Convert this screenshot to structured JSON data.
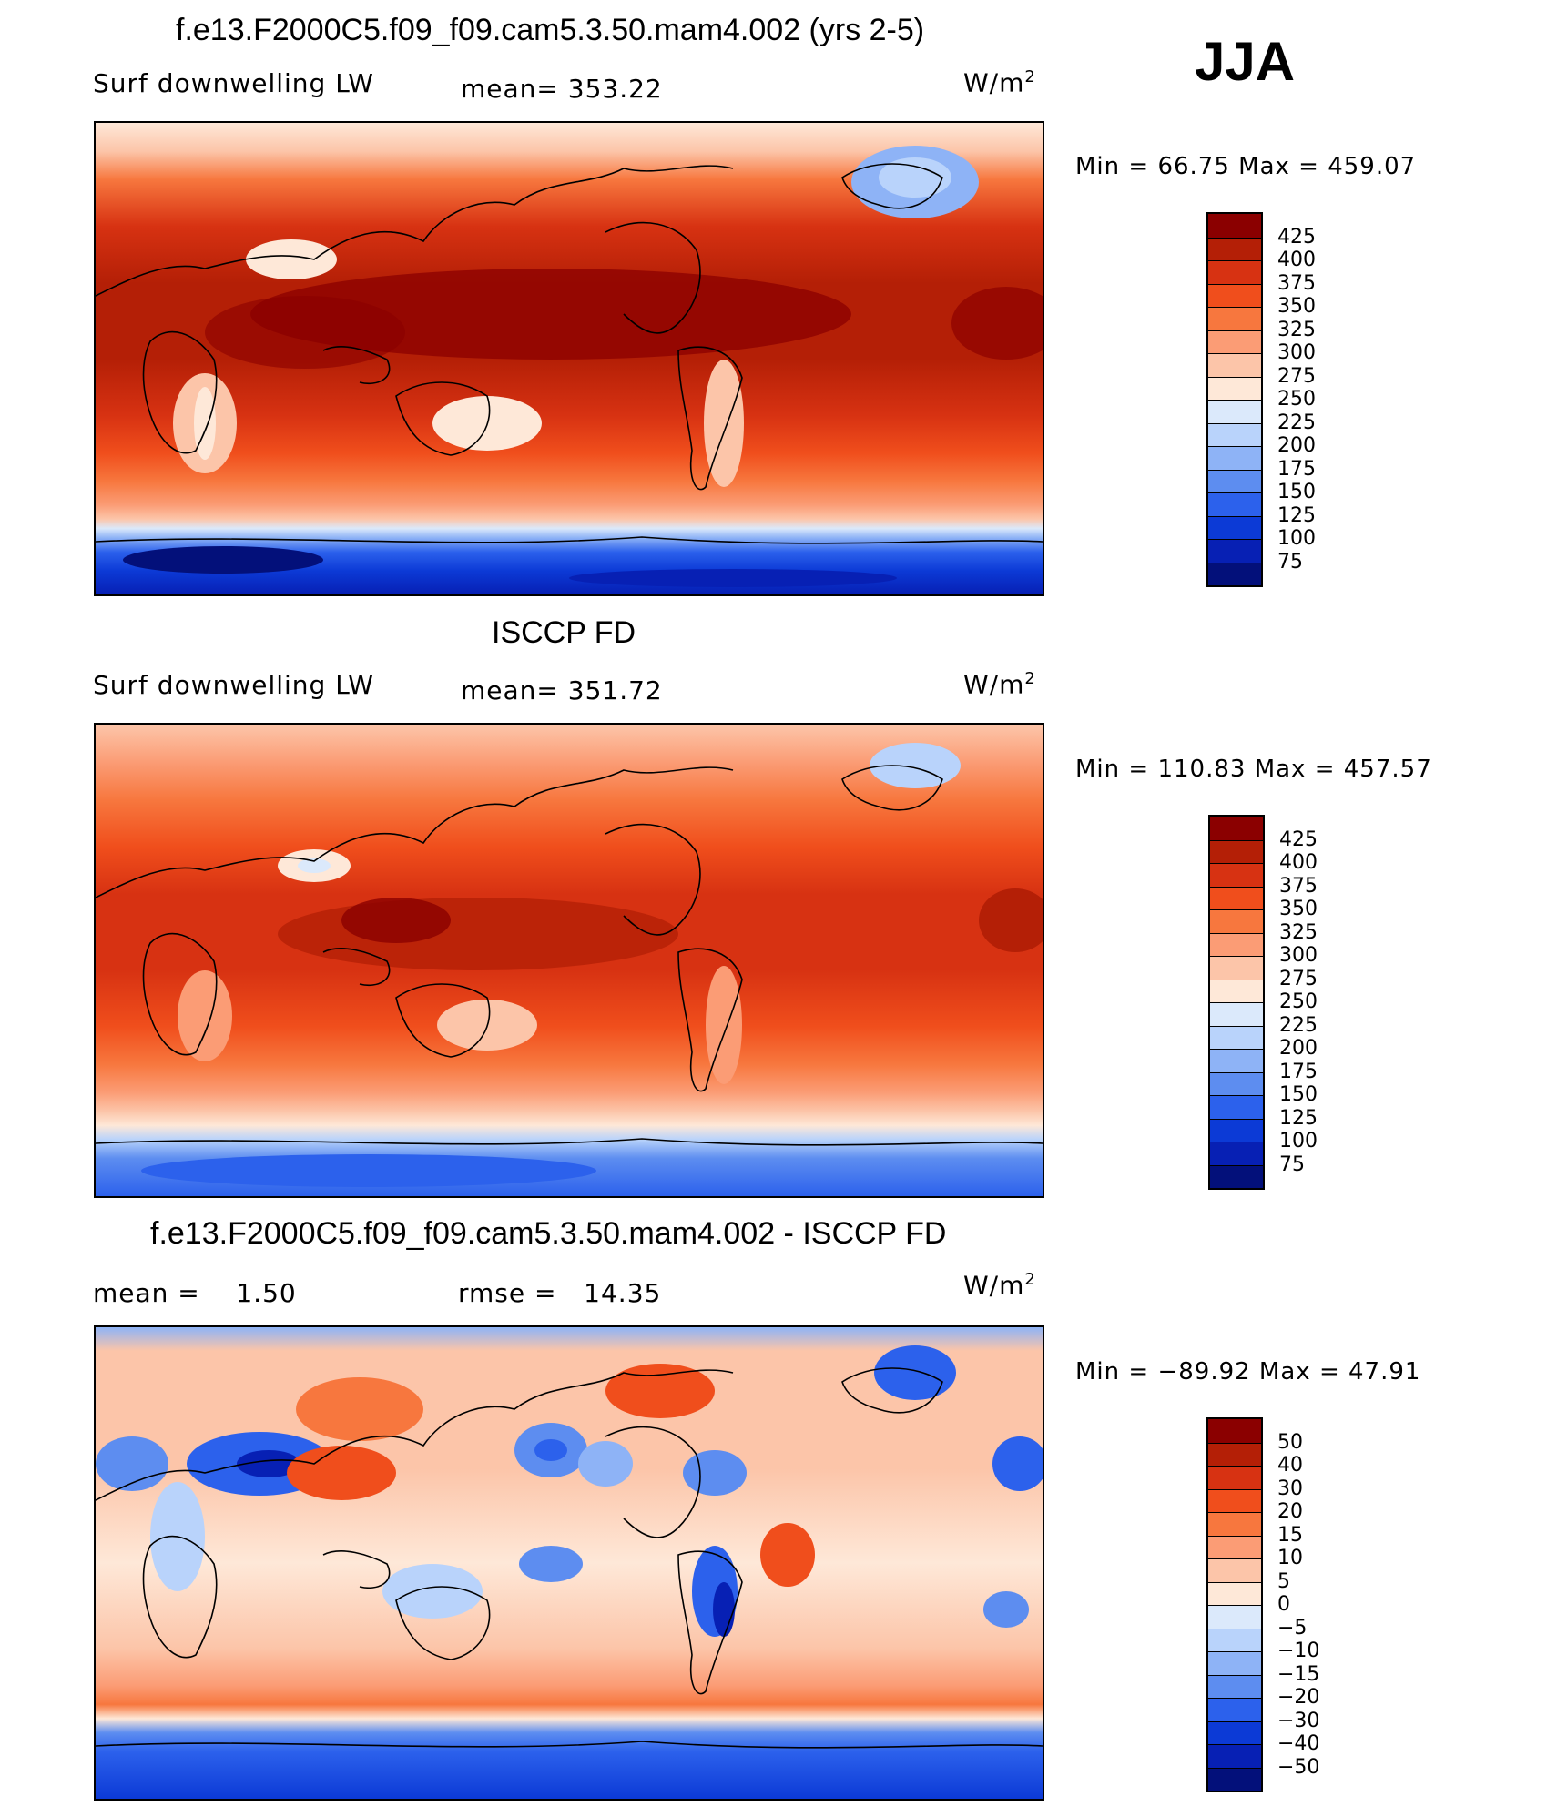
{
  "season": "JJA",
  "panels": [
    {
      "title": "f.e13.F2000C5.f09_f09.cam5.3.50.mam4.002 (yrs 2-5)",
      "left_label": "Surf downwelling LW",
      "center_label": "mean= 353.22",
      "units": "W/m",
      "units_sup": "2",
      "minmax": "Min =   66.75 Max = 459.07",
      "levels": [
        "425",
        "400",
        "375",
        "350",
        "325",
        "300",
        "275",
        "250",
        "225",
        "200",
        "175",
        "150",
        "125",
        "100",
        "75"
      ],
      "colors": [
        "#8b0000",
        "#b41f06",
        "#d73212",
        "#f04e1c",
        "#f7773e",
        "#fb9c75",
        "#fcc5a9",
        "#fee8d8",
        "#dbe9fb",
        "#b9d3fb",
        "#8eb3f6",
        "#5d8df0",
        "#2c61ec",
        "#0c3ad6",
        "#0720b4",
        "#03107a"
      ]
    },
    {
      "title": "ISCCP FD",
      "left_label": "Surf downwelling LW",
      "center_label": "mean= 351.72",
      "units": "W/m",
      "units_sup": "2",
      "minmax": "Min = 110.83 Max = 457.57",
      "levels": [
        "425",
        "400",
        "375",
        "350",
        "325",
        "300",
        "275",
        "250",
        "225",
        "200",
        "175",
        "150",
        "125",
        "100",
        "75"
      ],
      "colors": [
        "#8b0000",
        "#b41f06",
        "#d73212",
        "#f04e1c",
        "#f7773e",
        "#fb9c75",
        "#fcc5a9",
        "#fee8d8",
        "#dbe9fb",
        "#b9d3fb",
        "#8eb3f6",
        "#5d8df0",
        "#2c61ec",
        "#0c3ad6",
        "#0720b4",
        "#03107a"
      ]
    },
    {
      "title": "f.e13.F2000C5.f09_f09.cam5.3.50.mam4.002 - ISCCP FD",
      "left_label": "mean =    1.50",
      "center_label": "rmse =   14.35",
      "units": "W/m",
      "units_sup": "2",
      "minmax": "Min = −89.92 Max =   47.91",
      "levels": [
        "50",
        "40",
        "30",
        "20",
        "15",
        "10",
        "5",
        "0",
        "−5",
        "−10",
        "−15",
        "−20",
        "−30",
        "−40",
        "−50"
      ],
      "colors": [
        "#8b0000",
        "#b41f06",
        "#d73212",
        "#f04e1c",
        "#f7773e",
        "#fb9c75",
        "#fcc5a9",
        "#fee8d8",
        "#dbe9fb",
        "#b9d3fb",
        "#8eb3f6",
        "#5d8df0",
        "#2c61ec",
        "#0c3ad6",
        "#0720b4",
        "#03107a"
      ]
    }
  ],
  "chart_data": [
    {
      "type": "heatmap",
      "title": "f.e13.F2000C5.f09_f09.cam5.3.50.mam4.002 (yrs 2-5)",
      "field": "Surf downwelling LW",
      "units": "W/m2",
      "mean": 353.22,
      "min": 66.75,
      "max": 459.07,
      "contour_levels": [
        75,
        100,
        125,
        150,
        175,
        200,
        225,
        250,
        275,
        300,
        325,
        350,
        375,
        400,
        425
      ]
    },
    {
      "type": "heatmap",
      "title": "ISCCP FD",
      "field": "Surf downwelling LW",
      "units": "W/m2",
      "mean": 351.72,
      "min": 110.83,
      "max": 457.57,
      "contour_levels": [
        75,
        100,
        125,
        150,
        175,
        200,
        225,
        250,
        275,
        300,
        325,
        350,
        375,
        400,
        425
      ]
    },
    {
      "type": "heatmap",
      "title": "f.e13.F2000C5.f09_f09.cam5.3.50.mam4.002 - ISCCP FD",
      "units": "W/m2",
      "mean": 1.5,
      "rmse": 14.35,
      "min": -89.92,
      "max": 47.91,
      "contour_levels": [
        -50,
        -40,
        -30,
        -20,
        -15,
        -10,
        -5,
        0,
        5,
        10,
        15,
        20,
        30,
        40,
        50
      ]
    }
  ]
}
